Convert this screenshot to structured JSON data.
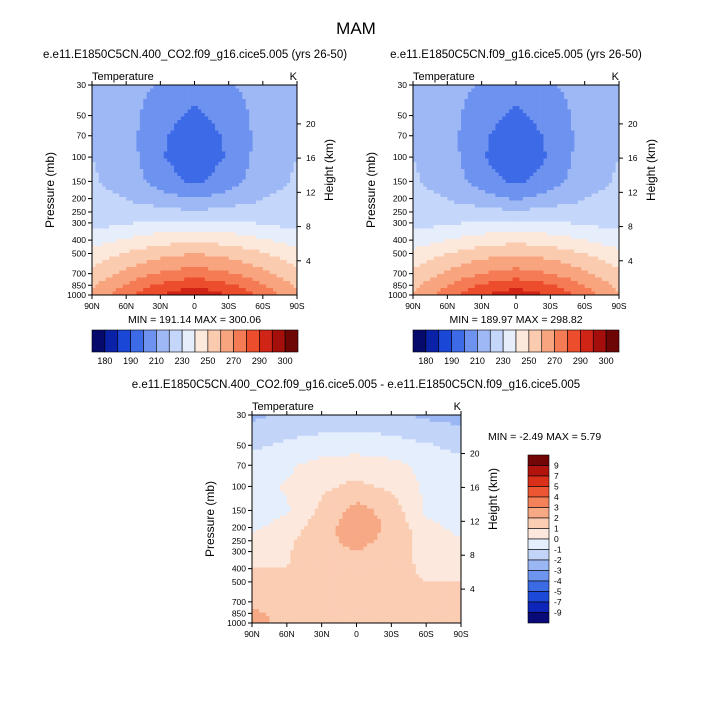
{
  "title": "MAM",
  "palettes": {
    "abs": [
      "#050a6b",
      "#0a22a8",
      "#1b47d6",
      "#3d6ae6",
      "#6d92ef",
      "#9db8f5",
      "#c4d6f9",
      "#e6eefc",
      "#fde9dc",
      "#fbcbaf",
      "#f8a57f",
      "#f57b55",
      "#ec4d2c",
      "#cf2416",
      "#a40f0c",
      "#6e0606"
    ],
    "diff": [
      "#080a78",
      "#0d25b8",
      "#1d49d9",
      "#3a6ae4",
      "#6d94ee",
      "#9ab7f4",
      "#c2d5f9",
      "#e5eefc",
      "#fce8dc",
      "#fbcdb3",
      "#f7a885",
      "#f3825b",
      "#ed5632",
      "#da2f18",
      "#b0140c",
      "#720606"
    ]
  },
  "chart_data": [
    {
      "type": "heatmap",
      "id": "panel_co2",
      "title": "e.e11.E1850C5CN.400_CO2.f09_g16.cice5.005 (yrs 26-50)",
      "left_label": "Temperature",
      "right_label": "K",
      "ylabel": "Pressure (mb)",
      "y2label": "Height (km)",
      "xticks": [
        "90N",
        "60N",
        "30N",
        "0",
        "30S",
        "60S",
        "90S"
      ],
      "yticks": [
        "30",
        "50",
        "70",
        "100",
        "150",
        "200",
        "250",
        "300",
        "400",
        "500",
        "700",
        "850",
        "1000"
      ],
      "y2ticks": [
        "20",
        "16",
        "12",
        "8",
        "4"
      ],
      "stats": "MIN = 191.14   MAX = 300.06",
      "colorbar_labels": [
        "180",
        "190",
        "210",
        "230",
        "250",
        "270",
        "290",
        "300"
      ],
      "x": [
        -90,
        -60,
        -30,
        0,
        30,
        60,
        90
      ],
      "p": [
        30,
        50,
        70,
        100,
        150,
        200,
        250,
        300,
        400,
        500,
        700,
        850,
        1000
      ],
      "values": [
        [
          216,
          214,
          209,
          204,
          209,
          214,
          216
        ],
        [
          218,
          214,
          204,
          198,
          204,
          214,
          218
        ],
        [
          219,
          214,
          202,
          194,
          202,
          214,
          219
        ],
        [
          220,
          215,
          201,
          193,
          201,
          215,
          220
        ],
        [
          221,
          217,
          205,
          198,
          205,
          217,
          221
        ],
        [
          222,
          220,
          214,
          210,
          214,
          220,
          222
        ],
        [
          224,
          224,
          224,
          221,
          224,
          224,
          224
        ],
        [
          226,
          229,
          232,
          232,
          232,
          229,
          226
        ],
        [
          236,
          241,
          246,
          248,
          246,
          241,
          236
        ],
        [
          244,
          251,
          257,
          260,
          257,
          251,
          244
        ],
        [
          253,
          263,
          271,
          275,
          271,
          263,
          253
        ],
        [
          258,
          271,
          282,
          288,
          282,
          271,
          258
        ],
        [
          262,
          277,
          290,
          298,
          290,
          277,
          262
        ]
      ]
    },
    {
      "type": "heatmap",
      "id": "panel_ctrl",
      "title": "e.e11.E1850C5CN.f09_g16.cice5.005 (yrs 26-50)",
      "left_label": "Temperature",
      "right_label": "K",
      "ylabel": "Pressure (mb)",
      "y2label": "Height (km)",
      "xticks": [
        "90N",
        "60N",
        "30N",
        "0",
        "30S",
        "60S",
        "90S"
      ],
      "yticks": [
        "30",
        "50",
        "70",
        "100",
        "150",
        "200",
        "250",
        "300",
        "400",
        "500",
        "700",
        "850",
        "1000"
      ],
      "y2ticks": [
        "20",
        "16",
        "12",
        "8",
        "4"
      ],
      "stats": "MIN = 189.97   MAX = 298.82",
      "colorbar_labels": [
        "180",
        "190",
        "210",
        "230",
        "250",
        "270",
        "290",
        "300"
      ],
      "x": [
        -90,
        -60,
        -30,
        0,
        30,
        60,
        90
      ],
      "p": [
        30,
        50,
        70,
        100,
        150,
        200,
        250,
        300,
        400,
        500,
        700,
        850,
        1000
      ],
      "values": [
        [
          216,
          214,
          209,
          204,
          209,
          214,
          216
        ],
        [
          218,
          214,
          204,
          198,
          204,
          214,
          218
        ],
        [
          219,
          214,
          202,
          194,
          202,
          214,
          219
        ],
        [
          220,
          215,
          201,
          192,
          201,
          215,
          220
        ],
        [
          221,
          217,
          205,
          198,
          205,
          217,
          221
        ],
        [
          222,
          220,
          214,
          209,
          214,
          220,
          222
        ],
        [
          224,
          224,
          224,
          221,
          224,
          224,
          224
        ],
        [
          226,
          229,
          231,
          231,
          231,
          229,
          226
        ],
        [
          235,
          240,
          245,
          247,
          245,
          240,
          235
        ],
        [
          243,
          250,
          256,
          259,
          256,
          250,
          243
        ],
        [
          252,
          262,
          270,
          274,
          270,
          262,
          252
        ],
        [
          257,
          270,
          281,
          287,
          281,
          270,
          257
        ],
        [
          261,
          276,
          289,
          297,
          289,
          276,
          261
        ]
      ]
    },
    {
      "type": "heatmap",
      "id": "panel_diff",
      "title": "e.e11.E1850C5CN.400_CO2.f09_g16.cice5.005 - e.e11.E1850C5CN.f09_g16.cice5.005",
      "left_label": "Temperature",
      "right_label": "K",
      "ylabel": "Pressure (mb)",
      "y2label": "Height (km)",
      "xticks": [
        "90N",
        "60N",
        "30N",
        "0",
        "30S",
        "60S",
        "90S"
      ],
      "yticks": [
        "30",
        "50",
        "70",
        "100",
        "150",
        "200",
        "250",
        "300",
        "400",
        "500",
        "700",
        "850",
        "1000"
      ],
      "y2ticks": [
        "20",
        "16",
        "12",
        "8",
        "4"
      ],
      "stats": "MIN = -2.49   MAX =  5.79",
      "colorbar_labels": [
        "9",
        "7",
        "5",
        "4",
        "3",
        "2",
        "1",
        "0",
        "-1",
        "-2",
        "-3",
        "-4",
        "-5",
        "-7",
        "-9"
      ],
      "x": [
        -90,
        -60,
        -30,
        0,
        30,
        60,
        90
      ],
      "p": [
        30,
        50,
        70,
        100,
        150,
        200,
        250,
        300,
        400,
        500,
        700,
        850,
        1000
      ],
      "values": [
        [
          -2.2,
          -1.8,
          -1.6,
          -1.6,
          -1.8,
          -2.2,
          -2.4
        ],
        [
          -1.2,
          -0.8,
          -0.6,
          -0.5,
          -0.6,
          -0.9,
          -1.3
        ],
        [
          -0.6,
          -0.2,
          0.4,
          0.6,
          0.3,
          -0.3,
          -0.7
        ],
        [
          -0.4,
          0.1,
          0.8,
          1.2,
          0.8,
          -0.2,
          -0.5
        ],
        [
          -0.5,
          -0.1,
          1.2,
          2.4,
          1.6,
          -0.2,
          -0.6
        ],
        [
          -0.2,
          0.4,
          1.6,
          2.6,
          1.8,
          0.3,
          -0.3
        ],
        [
          0.3,
          0.8,
          1.7,
          2.3,
          1.7,
          0.6,
          0.1
        ],
        [
          0.6,
          0.9,
          1.6,
          2.0,
          1.5,
          0.7,
          0.4
        ],
        [
          1.0,
          1.0,
          1.3,
          1.5,
          1.2,
          0.9,
          0.8
        ],
        [
          1.4,
          1.2,
          1.2,
          1.3,
          1.1,
          1.0,
          1.0
        ],
        [
          1.7,
          1.4,
          1.2,
          1.2,
          1.1,
          1.1,
          1.2
        ],
        [
          2.3,
          1.5,
          1.2,
          1.2,
          1.1,
          1.2,
          1.4
        ],
        [
          2.5,
          1.6,
          1.3,
          1.2,
          1.1,
          1.3,
          1.5
        ]
      ]
    }
  ]
}
